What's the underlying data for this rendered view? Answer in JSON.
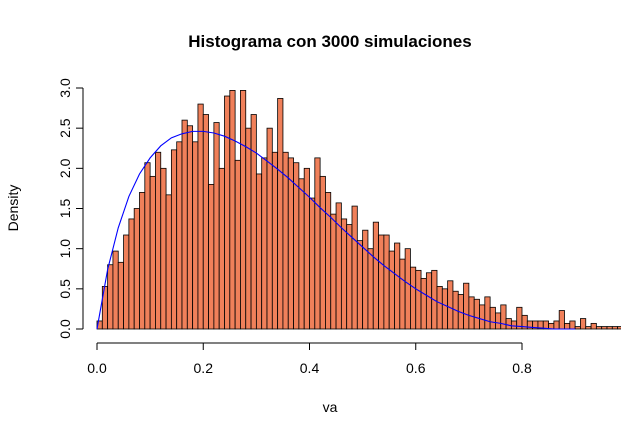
{
  "chart_data": {
    "type": "bar",
    "title": "Histograma con 3000 simulaciones",
    "xlabel": "va",
    "ylabel": "Density",
    "xlim": [
      0,
      0.9
    ],
    "ylim": [
      0,
      3.0
    ],
    "x_ticks": [
      "0.0",
      "0.2",
      "0.4",
      "0.6",
      "0.8"
    ],
    "x_tick_values": [
      0,
      0.2,
      0.4,
      0.6,
      0.8
    ],
    "y_ticks": [
      "0.0",
      "0.5",
      "1.0",
      "1.5",
      "2.0",
      "2.5",
      "3.0"
    ],
    "y_tick_values": [
      0,
      0.5,
      1.0,
      1.5,
      2.0,
      2.5,
      3.0
    ],
    "bin_width": 0.01,
    "bin_start": 0.0,
    "values": [
      0.1,
      0.53,
      0.8,
      0.97,
      0.83,
      1.17,
      1.37,
      1.5,
      1.7,
      2.07,
      1.9,
      2.2,
      2.0,
      1.67,
      2.23,
      2.33,
      2.6,
      2.53,
      2.33,
      2.8,
      2.67,
      1.8,
      2.57,
      2.0,
      2.9,
      2.97,
      2.1,
      2.97,
      2.5,
      2.67,
      1.93,
      2.13,
      2.5,
      2.2,
      2.87,
      2.2,
      2.13,
      2.07,
      1.87,
      2.0,
      1.63,
      2.13,
      1.9,
      1.7,
      1.43,
      1.57,
      1.37,
      1.3,
      1.53,
      1.1,
      1.23,
      1.0,
      1.33,
      1.17,
      1.17,
      0.97,
      1.07,
      0.87,
      1.0,
      0.77,
      0.73,
      0.63,
      0.7,
      0.73,
      0.53,
      0.5,
      0.6,
      0.47,
      0.43,
      0.57,
      0.4,
      0.37,
      0.3,
      0.4,
      0.27,
      0.2,
      0.3,
      0.13,
      0.1,
      0.27,
      0.17,
      0.1,
      0.1,
      0.1,
      0.1,
      0.07,
      0.1,
      0.23,
      0.07,
      0.1,
      0.03,
      0.13,
      0.03,
      0.07,
      0.03,
      0.03,
      0.03,
      0.03,
      0.03,
      0.0,
      0.03,
      0.03,
      0.0,
      0.03,
      0.0,
      0.0,
      0.0,
      0.0,
      0.0,
      0.0,
      0.0,
      0.0,
      0.0,
      0.0,
      0.0,
      0.0,
      0.0,
      0.0,
      0.0,
      0.0,
      0.0,
      0.0,
      0.0,
      0.0,
      0.0,
      0.0,
      0.0,
      0.0,
      0.0,
      0.0,
      0.0,
      0.0,
      0.0,
      0.0,
      0.0,
      0.0,
      0.0,
      0.0
    ],
    "curve": {
      "description": "fitted density curve",
      "x": [
        0.0,
        0.02,
        0.04,
        0.06,
        0.08,
        0.1,
        0.12,
        0.14,
        0.16,
        0.18,
        0.2,
        0.22,
        0.24,
        0.26,
        0.28,
        0.3,
        0.32,
        0.34,
        0.36,
        0.38,
        0.4,
        0.42,
        0.44,
        0.46,
        0.48,
        0.5,
        0.52,
        0.54,
        0.56,
        0.58,
        0.6,
        0.62,
        0.64,
        0.66,
        0.68,
        0.7,
        0.72,
        0.74,
        0.76,
        0.78,
        0.8,
        0.82,
        0.84,
        0.86,
        0.88,
        0.9
      ],
      "y": [
        0.0,
        0.74,
        1.26,
        1.65,
        1.93,
        2.13,
        2.28,
        2.38,
        2.43,
        2.46,
        2.46,
        2.44,
        2.4,
        2.34,
        2.27,
        2.19,
        2.09,
        1.99,
        1.88,
        1.76,
        1.64,
        1.51,
        1.39,
        1.26,
        1.14,
        1.02,
        0.9,
        0.79,
        0.69,
        0.59,
        0.5,
        0.42,
        0.34,
        0.28,
        0.22,
        0.17,
        0.13,
        0.09,
        0.07,
        0.04,
        0.03,
        0.02,
        0.01,
        0.0,
        0.0,
        0.0
      ]
    },
    "colors": {
      "bar_fill": "#f0805a",
      "bar_edge": "#000000",
      "curve": "#0000ff"
    },
    "grid": false,
    "legend": "none"
  }
}
